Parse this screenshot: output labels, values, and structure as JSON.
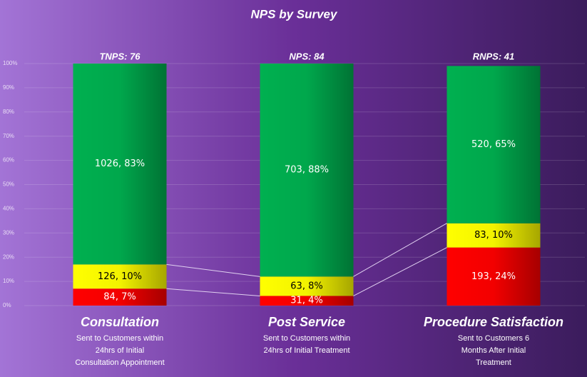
{
  "chart_data": {
    "type": "stacked_bar",
    "title": "NPS by Survey",
    "categories": [
      "Consultation",
      "Post Service",
      "Procedure Satisfaction"
    ],
    "descriptions": [
      [
        "Sent to Customers within",
        "24hrs  of Initial",
        "Consultation Appointment"
      ],
      [
        "Sent to Customers within",
        "24hrs of Initial Treatment"
      ],
      [
        "Sent to Customers 6",
        "Months After Initial",
        "Treatment"
      ]
    ],
    "top_labels": [
      "TNPS: 76",
      "NPS: 84",
      "RNPS: 41"
    ],
    "series": [
      {
        "color": "#ff0000",
        "values": [
          7,
          4,
          24
        ],
        "value_labels": [
          "84, 7%",
          "31, 4%",
          "193, 24%"
        ]
      },
      {
        "color": "#ffff00",
        "values": [
          10,
          8,
          10
        ],
        "value_labels": [
          "126, 10%",
          "63, 8%",
          "83, 10%"
        ]
      },
      {
        "color": "#00b050",
        "values": [
          83,
          88,
          65
        ],
        "value_labels": [
          "1026, 83%",
          "703, 88%",
          "520, 65%"
        ]
      }
    ],
    "ylim": [
      0,
      100
    ],
    "yticks": [
      {
        "value": 0,
        "label": "0%"
      },
      {
        "value": 10,
        "label": "10%"
      },
      {
        "value": 20,
        "label": "20%"
      },
      {
        "value": 30,
        "label": "30%"
      },
      {
        "value": 40,
        "label": "40%"
      },
      {
        "value": 50,
        "label": "50%"
      },
      {
        "value": 60,
        "label": "60%"
      },
      {
        "value": 70,
        "label": "70%"
      },
      {
        "value": 80,
        "label": "80%"
      },
      {
        "value": 90,
        "label": "90%"
      },
      {
        "value": 100,
        "label": "100%"
      }
    ],
    "grid": true
  }
}
